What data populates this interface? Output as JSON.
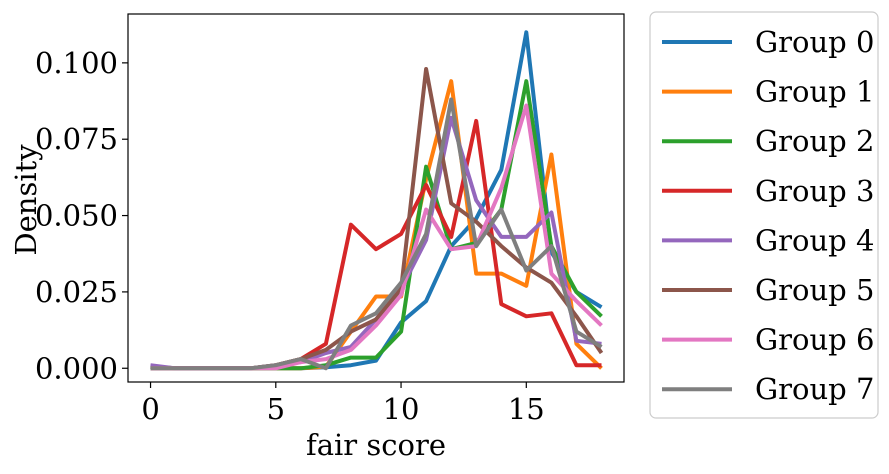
{
  "chart_data": {
    "type": "line",
    "title": "",
    "xlabel": "fair score",
    "ylabel": "Density",
    "xlim": [
      -0.9,
      18.9
    ],
    "ylim": [
      -0.0045,
      0.116
    ],
    "xticks": [
      0,
      5,
      10,
      15
    ],
    "xtick_labels": [
      "0",
      "5",
      "10",
      "15"
    ],
    "yticks": [
      0.0,
      0.025,
      0.05,
      0.075,
      0.1
    ],
    "ytick_labels": [
      "0.000",
      "0.025",
      "0.050",
      "0.075",
      "0.100"
    ],
    "grid": false,
    "legend_position": "outside-right",
    "x": [
      0,
      1,
      2,
      3,
      4,
      5,
      6,
      7,
      8,
      9,
      10,
      11,
      12,
      13,
      14,
      15,
      16,
      17,
      18
    ],
    "series": [
      {
        "name": "Group 0",
        "color": "#1f77b4",
        "values": [
          0.0005,
          0,
          0,
          0,
          0,
          0,
          0,
          0.0003,
          0.001,
          0.0025,
          0.015,
          0.022,
          0.04,
          0.049,
          0.065,
          0.11,
          0.038,
          0.025,
          0.02
        ]
      },
      {
        "name": "Group 1",
        "color": "#ff7f0e",
        "values": [
          0.0005,
          0,
          0,
          0,
          0,
          0,
          0,
          0.0005,
          0.012,
          0.0235,
          0.0235,
          0.062,
          0.094,
          0.031,
          0.031,
          0.027,
          0.07,
          0.008,
          0.0
        ]
      },
      {
        "name": "Group 2",
        "color": "#2ca02c",
        "values": [
          0.0005,
          0,
          0,
          0,
          0,
          0,
          0,
          0.001,
          0.0035,
          0.0035,
          0.012,
          0.066,
          0.039,
          0.041,
          0.052,
          0.094,
          0.04,
          0.025,
          0.017
        ]
      },
      {
        "name": "Group 3",
        "color": "#d62728",
        "values": [
          0,
          0,
          0,
          0,
          0,
          0.001,
          0.003,
          0.008,
          0.047,
          0.039,
          0.044,
          0.06,
          0.043,
          0.081,
          0.021,
          0.017,
          0.018,
          0.001,
          0.001
        ]
      },
      {
        "name": "Group 4",
        "color": "#9467bd",
        "values": [
          0.001,
          0,
          0,
          0,
          0,
          0.001,
          0.002,
          0.005,
          0.007,
          0.016,
          0.026,
          0.042,
          0.082,
          0.055,
          0.043,
          0.043,
          0.051,
          0.009,
          0.008
        ]
      },
      {
        "name": "Group 5",
        "color": "#8c564b",
        "values": [
          0,
          0,
          0,
          0,
          0,
          0.001,
          0.003,
          0.006,
          0.012,
          0.016,
          0.026,
          0.098,
          0.054,
          0.048,
          0.04,
          0.033,
          0.028,
          0.017,
          0.005
        ]
      },
      {
        "name": "Group 6",
        "color": "#e377c2",
        "values": [
          0,
          0,
          0,
          0,
          0,
          0,
          0.002,
          0.003,
          0.006,
          0.014,
          0.024,
          0.052,
          0.039,
          0.04,
          0.059,
          0.086,
          0.031,
          0.022,
          0.014
        ]
      },
      {
        "name": "Group 7",
        "color": "#7f7f7f",
        "values": [
          0,
          0,
          0,
          0,
          0,
          0.001,
          0.003,
          0,
          0.014,
          0.018,
          0.028,
          0.044,
          0.088,
          0.04,
          0.052,
          0.032,
          0.04,
          0.012,
          0.007
        ]
      }
    ]
  }
}
